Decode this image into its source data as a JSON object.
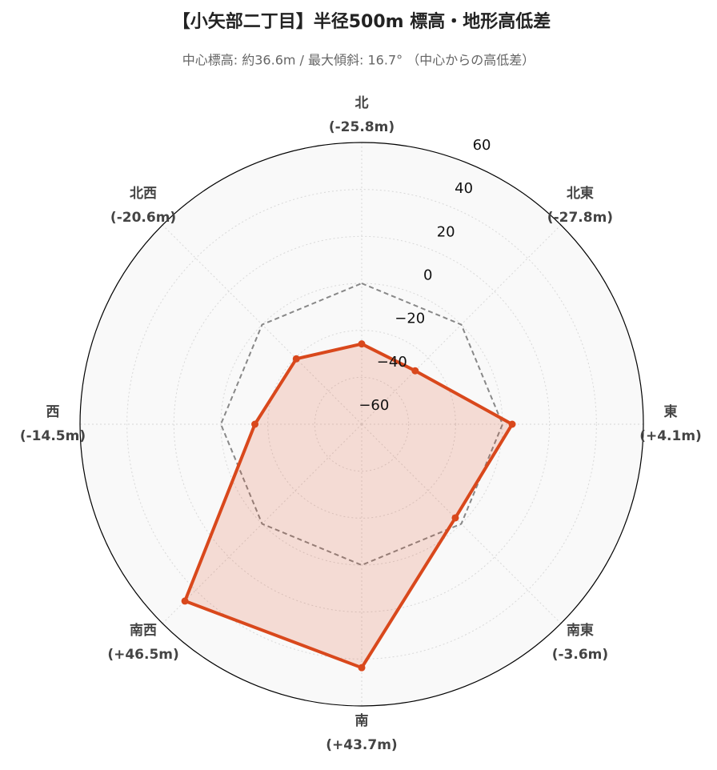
{
  "chart_data": {
    "type": "radar",
    "title": "【小矢部二丁目】半径500m 標高・地形高低差",
    "subtitle": "中心標高: 約36.6m / 最大傾斜: 16.7° （中心からの高低差）",
    "categories": [
      "北",
      "北東",
      "東",
      "南東",
      "南",
      "南西",
      "西",
      "北西"
    ],
    "series": [
      {
        "color": "#d9481c",
        "values": [
          -25.8,
          -27.8,
          4.1,
          -3.6,
          43.7,
          46.5,
          -14.5,
          -20.6
        ],
        "value_labels": [
          "(-25.8m)",
          "(-27.8m)",
          "(+4.1m)",
          "(-3.6m)",
          "(+43.7m)",
          "(+46.5m)",
          "(-14.5m)",
          "(-20.6m)"
        ]
      },
      {
        "color": "#888888",
        "values": [
          0,
          0,
          0,
          0,
          0,
          0,
          0,
          0
        ]
      }
    ],
    "ylim": [
      -60,
      60
    ],
    "yticks": [
      {
        "value": -60,
        "label": "−60"
      },
      {
        "value": -40,
        "label": "−40"
      },
      {
        "value": -20,
        "label": "−20"
      },
      0,
      20,
      40,
      60
    ],
    "grid": true
  }
}
